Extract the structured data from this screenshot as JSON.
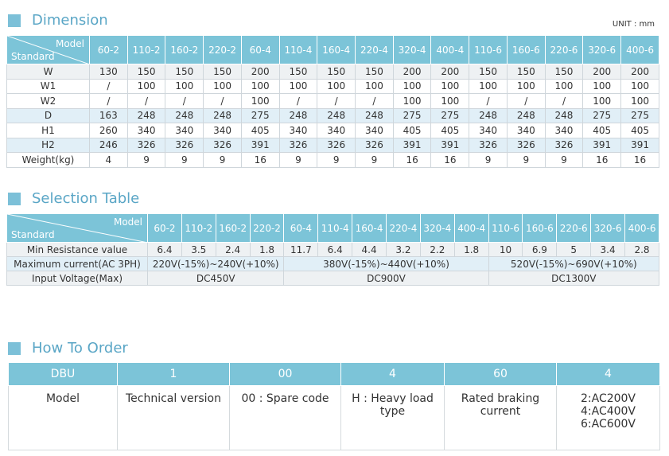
{
  "dimension": {
    "title": "Dimension",
    "unit": "UNIT : mm",
    "header": {
      "model": "Model",
      "standard": "Standard",
      "columns": [
        "60-2",
        "110-2",
        "160-2",
        "220-2",
        "60-4",
        "110-4",
        "160-4",
        "220-4",
        "320-4",
        "400-4",
        "110-6",
        "160-6",
        "220-6",
        "320-6",
        "400-6"
      ]
    },
    "rows": [
      {
        "label": "W",
        "values": [
          130,
          150,
          150,
          150,
          200,
          150,
          150,
          150,
          200,
          200,
          150,
          150,
          150,
          200,
          200
        ]
      },
      {
        "label": "W1",
        "values": [
          "/",
          100,
          100,
          100,
          100,
          100,
          100,
          100,
          100,
          100,
          100,
          100,
          100,
          100,
          100
        ]
      },
      {
        "label": "W2",
        "values": [
          "/",
          "/",
          "/",
          "/",
          100,
          "/",
          "/",
          "/",
          100,
          100,
          "/",
          "/",
          "/",
          100,
          100
        ]
      },
      {
        "label": "D",
        "values": [
          163,
          248,
          248,
          248,
          275,
          248,
          248,
          248,
          275,
          275,
          248,
          248,
          248,
          275,
          275
        ]
      },
      {
        "label": "H1",
        "values": [
          260,
          340,
          340,
          340,
          405,
          340,
          340,
          340,
          405,
          405,
          340,
          340,
          340,
          405,
          405
        ]
      },
      {
        "label": "H2",
        "values": [
          246,
          326,
          326,
          326,
          391,
          326,
          326,
          326,
          391,
          391,
          326,
          326,
          326,
          391,
          391
        ]
      },
      {
        "label": "Weight(kg)",
        "values": [
          4,
          9,
          9,
          9,
          16,
          9,
          9,
          9,
          16,
          16,
          9,
          9,
          9,
          16,
          16
        ]
      }
    ]
  },
  "selection_table": {
    "title": "Selection Table",
    "header": {
      "model": "Model",
      "standard": "Standard",
      "columns": [
        "60-2",
        "110-2",
        "160-2",
        "220-2",
        "60-4",
        "110-4",
        "160-4",
        "220-4",
        "320-4",
        "400-4",
        "110-6",
        "160-6",
        "220-6",
        "320-6",
        "400-6"
      ]
    },
    "rows": [
      {
        "label": "Min Resistance value",
        "cells": [
          6.4,
          3.5,
          2.4,
          1.8,
          11.7,
          6.4,
          4.4,
          3.2,
          2.2,
          1.8,
          10,
          6.9,
          5,
          3.4,
          2.8
        ]
      },
      {
        "label": "Maximum current(AC 3PH)",
        "cells": [
          "220V(-15%)~240V(+10%)",
          "380V(-15%)~440V(+10%)",
          "520V(-15%)~690V(+10%)"
        ]
      },
      {
        "label": "Input Voltage(Max)",
        "cells": [
          "DC450V",
          "DC900V",
          "DC1300V"
        ]
      }
    ]
  },
  "how_to_order": {
    "title": "How To Order",
    "header": [
      "DBU",
      "1",
      "00",
      "4",
      "60",
      "4"
    ],
    "descriptions": [
      "Model",
      "Technical version",
      "00 : Spare code",
      "H : Heavy load\ntype",
      "Rated braking\ncurrent",
      "2:AC200V\n4:AC400V\n6:AC600V"
    ]
  }
}
